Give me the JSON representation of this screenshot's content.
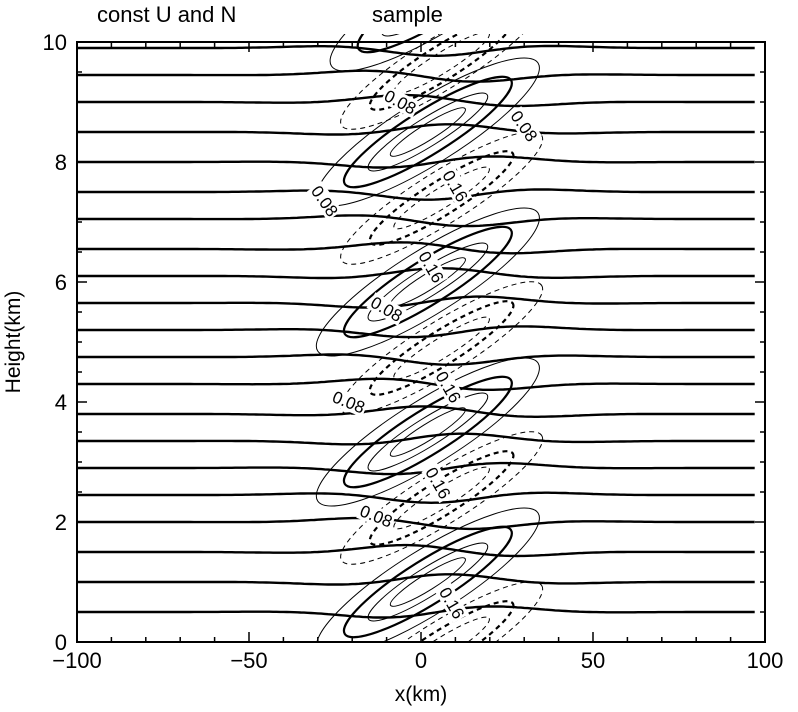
{
  "chart_data": {
    "type": "contour",
    "title_left": "const U and N",
    "title_right": "sample",
    "xlabel": "x(km)",
    "ylabel": "Height(km)",
    "xlim": [
      -100,
      100
    ],
    "ylim": [
      0,
      10
    ],
    "x_ticks": [
      -100,
      -50,
      0,
      50,
      100
    ],
    "y_ticks": [
      0,
      2,
      4,
      6,
      8,
      10
    ],
    "x_tick_labels": [
      "−100",
      "−50",
      "0",
      "50",
      "100"
    ],
    "y_tick_labels": [
      "0",
      "2",
      "4",
      "6",
      "8",
      "10"
    ],
    "grid": false,
    "streamlines": {
      "style": "thick solid",
      "base_heights_km": [
        0.5,
        1.0,
        1.5,
        2.0,
        2.45,
        2.9,
        3.35,
        3.8,
        4.3,
        4.75,
        5.2,
        5.65,
        6.1,
        6.55,
        7.05,
        7.5,
        8.0,
        8.5,
        9.0,
        9.45,
        9.9
      ]
    },
    "vertical_velocity_contours": {
      "positive_style": "solid",
      "negative_style": "dashed",
      "labels": [
        {
          "text": "0.08",
          "x": -6,
          "y": 9.0,
          "angle": 28
        },
        {
          "text": "0.08",
          "x": 30,
          "y": 8.6,
          "angle": 55
        },
        {
          "text": "0.16",
          "x": 10,
          "y": 7.6,
          "angle": 60
        },
        {
          "text": "0.08",
          "x": -28,
          "y": 7.35,
          "angle": 55
        },
        {
          "text": "0.16",
          "x": 3,
          "y": 6.25,
          "angle": 60
        },
        {
          "text": "0.08",
          "x": -10,
          "y": 5.55,
          "angle": 30
        },
        {
          "text": "0.16",
          "x": 8,
          "y": 4.25,
          "angle": 60
        },
        {
          "text": "0.08",
          "x": -21,
          "y": 4.0,
          "angle": 22
        },
        {
          "text": "0.16",
          "x": 5,
          "y": 2.65,
          "angle": 60
        },
        {
          "text": "0.08",
          "x": -13,
          "y": 2.1,
          "angle": 22
        },
        {
          "text": "0.16",
          "x": 9,
          "y": 0.65,
          "angle": 60
        }
      ]
    }
  }
}
